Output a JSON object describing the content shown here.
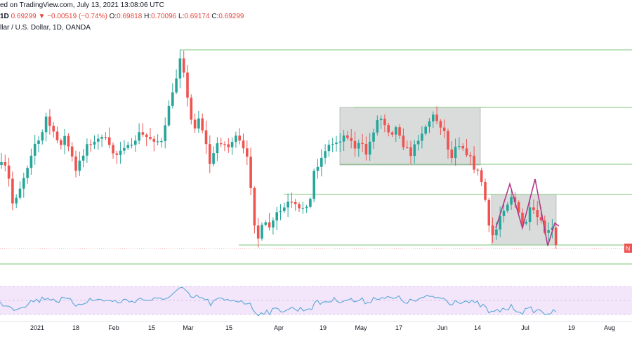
{
  "header": {
    "published": "ed on TradingView.com, July 13, 2021 13:08:06 UTC",
    "ohlc_prefix": "1D",
    "close_value": "0.69299",
    "change": "▼ −0.00519 (−0.74%)",
    "o_label": "O:",
    "o_value": "0.69818",
    "h_label": "H:",
    "h_value": "0.70096",
    "l_label": "L:",
    "l_value": "0.69174",
    "c_label": "C:",
    "c_value": "0.69299",
    "symbol": "llar / U.S. Dollar, 1D, OANDA"
  },
  "chart_data": {
    "type": "candlestick",
    "pair": "Australian Dollar / U.S. Dollar",
    "timeframe": "1D",
    "source": "OANDA",
    "x_tick_labels": [
      "2021",
      "18",
      "Feb",
      "15",
      "Mar",
      "15",
      "Apr",
      "19",
      "May",
      "17",
      "Jun",
      "14",
      "Jul",
      "19",
      "Aug"
    ],
    "last_price_tag": "N",
    "colors": {
      "up": "#26a69a",
      "down": "#ef5350",
      "level": "#7cc47a",
      "zone": "#d3d6d6",
      "rsi_line": "#5aa7d6",
      "rsi_band": "#f3e6fb",
      "pattern": "#b03a86"
    },
    "x_month_starts": [
      "2021-01",
      "2021-02",
      "2021-03",
      "2021-04",
      "2021-05",
      "2021-06",
      "2021-07",
      "2021-08"
    ],
    "last_close": 0.69299,
    "oscillator": {
      "type": "line"
    }
  }
}
